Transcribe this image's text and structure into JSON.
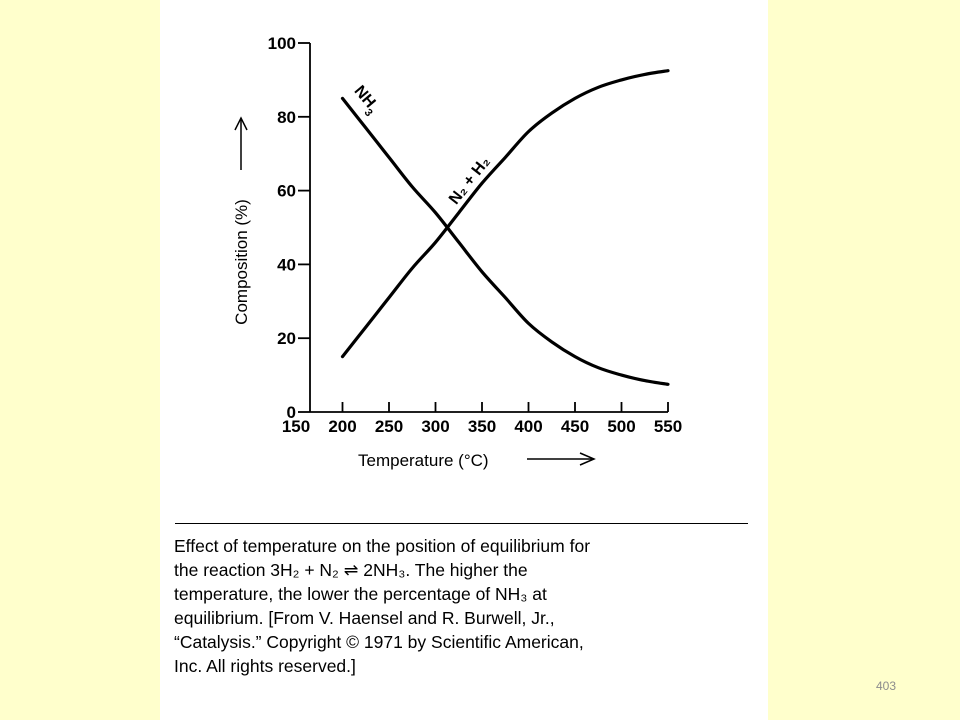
{
  "chart_data": {
    "type": "line",
    "xlabel": "Temperature (°C)",
    "ylabel": "Composition (%)",
    "xlim": [
      150,
      550
    ],
    "ylim": [
      0,
      100
    ],
    "x_ticks": [
      150,
      200,
      250,
      300,
      350,
      400,
      450,
      500,
      550
    ],
    "y_ticks": [
      0,
      20,
      40,
      60,
      80,
      100
    ],
    "grid": false,
    "legend": "none",
    "series": [
      {
        "name": "NH3",
        "label_text": "NH",
        "label_sub": "3",
        "x": [
          200,
          225,
          250,
          275,
          300,
          325,
          350,
          375,
          400,
          425,
          450,
          475,
          500,
          525,
          550
        ],
        "y": [
          85,
          77,
          69,
          61,
          54,
          46,
          38,
          31,
          24,
          19,
          15,
          12,
          10,
          8.5,
          7.5
        ]
      },
      {
        "name": "N2 + H2",
        "label_text": "N₂ + H₂",
        "x": [
          200,
          225,
          250,
          275,
          300,
          325,
          350,
          375,
          400,
          425,
          450,
          475,
          500,
          525,
          550
        ],
        "y": [
          15,
          23,
          31,
          39,
          46,
          54,
          62,
          69,
          76,
          81,
          85,
          88,
          90,
          91.5,
          92.5
        ]
      }
    ]
  },
  "caption_lines": [
    "Effect of temperature on the position of equilibrium for",
    "the reaction 3H₂ + N₂ ⇌ 2NH₃. The higher the",
    "temperature, the lower the percentage of NH₃ at",
    "equilibrium. [From V. Haensel and R. Burwell, Jr.,",
    "“Catalysis.” Copyright © 1971 by Scientific American,",
    "Inc. All rights reserved.]"
  ],
  "page_number": "403"
}
